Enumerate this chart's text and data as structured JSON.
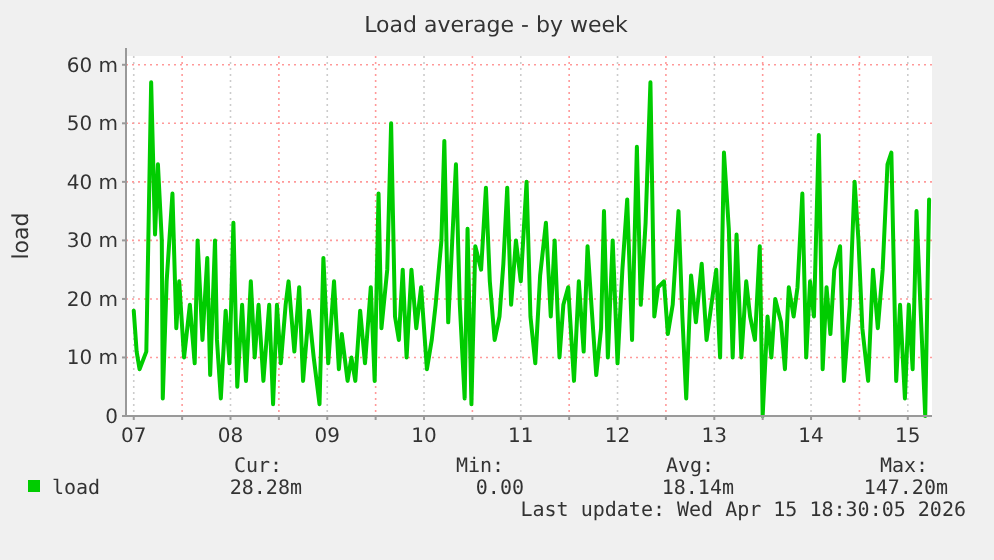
{
  "chart_data": {
    "type": "line",
    "title": "Load average - by week",
    "ylabel": "load",
    "x": [
      7.5,
      7.53,
      7.56,
      7.63,
      7.68,
      7.72,
      7.75,
      7.79,
      7.8,
      7.84,
      7.9,
      7.94,
      7.97,
      8.02,
      8.08,
      8.13,
      8.16,
      8.21,
      8.26,
      8.29,
      8.34,
      8.36,
      8.4,
      8.45,
      8.49,
      8.53,
      8.57,
      8.62,
      8.66,
      8.71,
      8.75,
      8.79,
      8.84,
      8.9,
      8.94,
      8.98,
      9.02,
      9.07,
      9.1,
      9.16,
      9.21,
      9.25,
      9.31,
      9.36,
      9.42,
      9.46,
      9.51,
      9.57,
      9.62,
      9.65,
      9.71,
      9.75,
      9.79,
      9.84,
      9.89,
      9.95,
      9.99,
      10.03,
      10.06,
      10.12,
      10.16,
      10.2,
      10.24,
      10.28,
      10.32,
      10.37,
      10.42,
      10.47,
      10.53,
      10.58,
      10.62,
      10.68,
      10.71,
      10.75,
      10.78,
      10.83,
      10.87,
      10.92,
      10.95,
      10.99,
      11.03,
      11.09,
      11.14,
      11.18,
      11.23,
      11.28,
      11.32,
      11.36,
      11.4,
      11.45,
      11.5,
      11.56,
      11.6,
      11.65,
      11.7,
      11.76,
      11.81,
      11.85,
      11.9,
      11.94,
      11.99,
      12.05,
      12.1,
      12.15,
      12.19,
      12.23,
      12.28,
      12.33,
      12.36,
      12.4,
      12.45,
      12.5,
      12.55,
      12.6,
      12.65,
      12.7,
      12.74,
      12.79,
      12.84,
      12.88,
      12.92,
      12.98,
      13.02,
      13.07,
      13.13,
      13.17,
      13.21,
      13.26,
      13.31,
      13.37,
      13.42,
      13.47,
      13.52,
      13.56,
      13.6,
      13.65,
      13.69,
      13.73,
      13.78,
      13.83,
      13.87,
      13.92,
      13.97,
      14.0,
      14.05,
      14.09,
      14.13,
      14.19,
      14.23,
      14.27,
      14.32,
      14.36,
      14.41,
      14.45,
      14.49,
      14.53,
      14.58,
      14.62,
      14.66,
      14.7,
      14.74,
      14.8,
      14.84,
      14.9,
      14.95,
      14.99,
      15.03,
      15.09,
      15.14,
      15.19,
      15.24,
      15.29,
      15.33,
      15.38,
      15.42,
      15.47,
      15.51,
      15.55,
      15.59,
      15.63,
      15.68,
      15.72
    ],
    "series": [
      {
        "name": "load",
        "color": "#00cc00",
        "values": [
          18,
          11,
          8,
          11,
          57,
          31,
          43,
          30,
          3,
          23,
          38,
          15,
          23,
          10,
          19,
          9,
          30,
          13,
          27,
          7,
          30,
          13,
          3,
          18,
          9,
          33,
          5,
          19,
          6,
          23,
          10,
          19,
          6,
          19,
          2,
          19,
          9,
          19,
          23,
          11,
          22,
          6,
          18,
          10,
          2,
          27,
          9,
          23,
          8,
          14,
          6,
          10,
          6,
          18,
          9,
          22,
          6,
          38,
          15,
          25,
          50,
          17,
          13,
          25,
          10,
          25,
          15,
          22,
          8,
          13,
          19,
          30,
          47,
          16,
          26,
          43,
          19,
          3,
          32,
          2,
          29,
          25,
          39,
          23,
          13,
          17,
          26,
          39,
          19,
          30,
          23,
          40,
          17,
          9,
          24,
          33,
          17,
          30,
          10,
          19,
          22,
          6,
          23,
          11,
          29,
          19,
          7,
          15,
          35,
          10,
          30,
          9,
          25,
          37,
          13,
          46,
          19,
          33,
          57,
          17,
          22,
          23,
          14,
          19,
          35,
          17,
          3,
          24,
          16,
          26,
          13,
          19,
          25,
          10,
          45,
          32,
          10,
          31,
          10,
          23,
          17,
          13,
          29,
          0,
          17,
          10,
          20,
          16,
          8,
          22,
          17,
          22,
          38,
          10,
          23,
          17,
          48,
          8,
          22,
          14,
          25,
          29,
          6,
          19,
          40,
          30,
          15,
          6,
          25,
          15,
          25,
          43,
          45,
          6,
          19,
          3,
          19,
          8,
          35,
          19,
          0,
          37
        ]
      }
    ],
    "xlim": [
      7.42,
      15.75
    ],
    "xticks": [
      {
        "value": 7.5,
        "label": "07"
      },
      {
        "value": 8,
        "label": null
      },
      {
        "value": 8.5,
        "label": "08"
      },
      {
        "value": 9,
        "label": null
      },
      {
        "value": 9.5,
        "label": "09"
      },
      {
        "value": 10,
        "label": null
      },
      {
        "value": 10.5,
        "label": "10"
      },
      {
        "value": 11,
        "label": null
      },
      {
        "value": 11.5,
        "label": "11"
      },
      {
        "value": 12,
        "label": null
      },
      {
        "value": 12.5,
        "label": "12"
      },
      {
        "value": 13,
        "label": null
      },
      {
        "value": 13.5,
        "label": "13"
      },
      {
        "value": 14,
        "label": null
      },
      {
        "value": 14.5,
        "label": "14"
      },
      {
        "value": 15,
        "label": null
      },
      {
        "value": 15.5,
        "label": "15"
      }
    ],
    "ylim": [
      0,
      61.5
    ],
    "yticks": [
      {
        "value": 0,
        "label": "0"
      },
      {
        "value": 10,
        "label": "10 m"
      },
      {
        "value": 20,
        "label": "20 m"
      },
      {
        "value": 30,
        "label": "30 m"
      },
      {
        "value": 40,
        "label": "40 m"
      },
      {
        "value": 50,
        "label": "50 m"
      },
      {
        "value": 60,
        "label": "60 m"
      }
    ],
    "grid": true,
    "legend": "bottom",
    "line_style": "solid",
    "marker": "none",
    "annotations": [
      "Cur:",
      "28.28m",
      "Min:",
      "0.00",
      "Avg:",
      "18.14m",
      "Max:",
      "147.20m",
      "Last update: Wed Apr 15 18:30:05 2026"
    ]
  }
}
